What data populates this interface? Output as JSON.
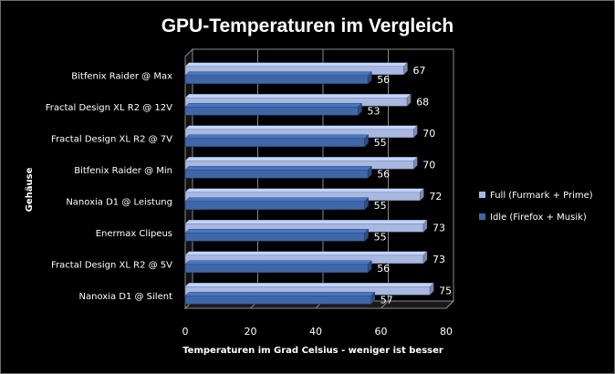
{
  "chart_data": {
    "type": "bar",
    "orientation": "horizontal",
    "title": "GPU-Temperaturen im Vergleich",
    "xlabel": "Temperaturen im Grad Celsius - weniger ist besser",
    "ylabel": "Gehäuse",
    "xlim": [
      0,
      80
    ],
    "xticks": [
      0,
      20,
      40,
      60,
      80
    ],
    "grid": true,
    "legend_position": "right",
    "categories": [
      "Bitfenix Raider @ Max",
      "Fractal Design XL R2 @ 12V",
      "Fractal Design XL R2 @ 7V",
      "Bitfenix Raider @ Min",
      "Nanoxia D1 @ Leistung",
      "Enermax Clipeus",
      "Fractal Design XL R2 @ 5V",
      "Nanoxia D1 @ Silent"
    ],
    "series": [
      {
        "name": "Full (Furmark + Prime)",
        "values": [
          67,
          68,
          70,
          70,
          72,
          73,
          73,
          75
        ],
        "color": "#a8b8e0"
      },
      {
        "name": "Idle (Firefox + Musik)",
        "values": [
          56,
          53,
          55,
          56,
          55,
          55,
          56,
          57
        ],
        "color": "#3f67a8"
      }
    ]
  }
}
